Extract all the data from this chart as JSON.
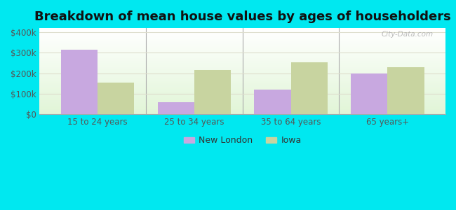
{
  "title": "Breakdown of mean house values by ages of householders",
  "categories": [
    "15 to 24 years",
    "25 to 34 years",
    "35 to 64 years",
    "65 years+"
  ],
  "new_london_values": [
    315000,
    60000,
    120000,
    200000
  ],
  "iowa_values": [
    155000,
    215000,
    255000,
    228000
  ],
  "bar_color_nl": "#c8a8e0",
  "bar_color_iowa": "#c8d4a0",
  "background_outer": "#00e8f0",
  "ylim": [
    0,
    420000
  ],
  "yticks": [
    0,
    100000,
    200000,
    300000,
    400000
  ],
  "ytick_labels": [
    "$0",
    "$100k",
    "$200k",
    "$300k",
    "$400k"
  ],
  "legend_nl": "New London",
  "legend_iowa": "Iowa",
  "title_fontsize": 13,
  "bar_width": 0.38,
  "tick_fontsize": 8.5
}
